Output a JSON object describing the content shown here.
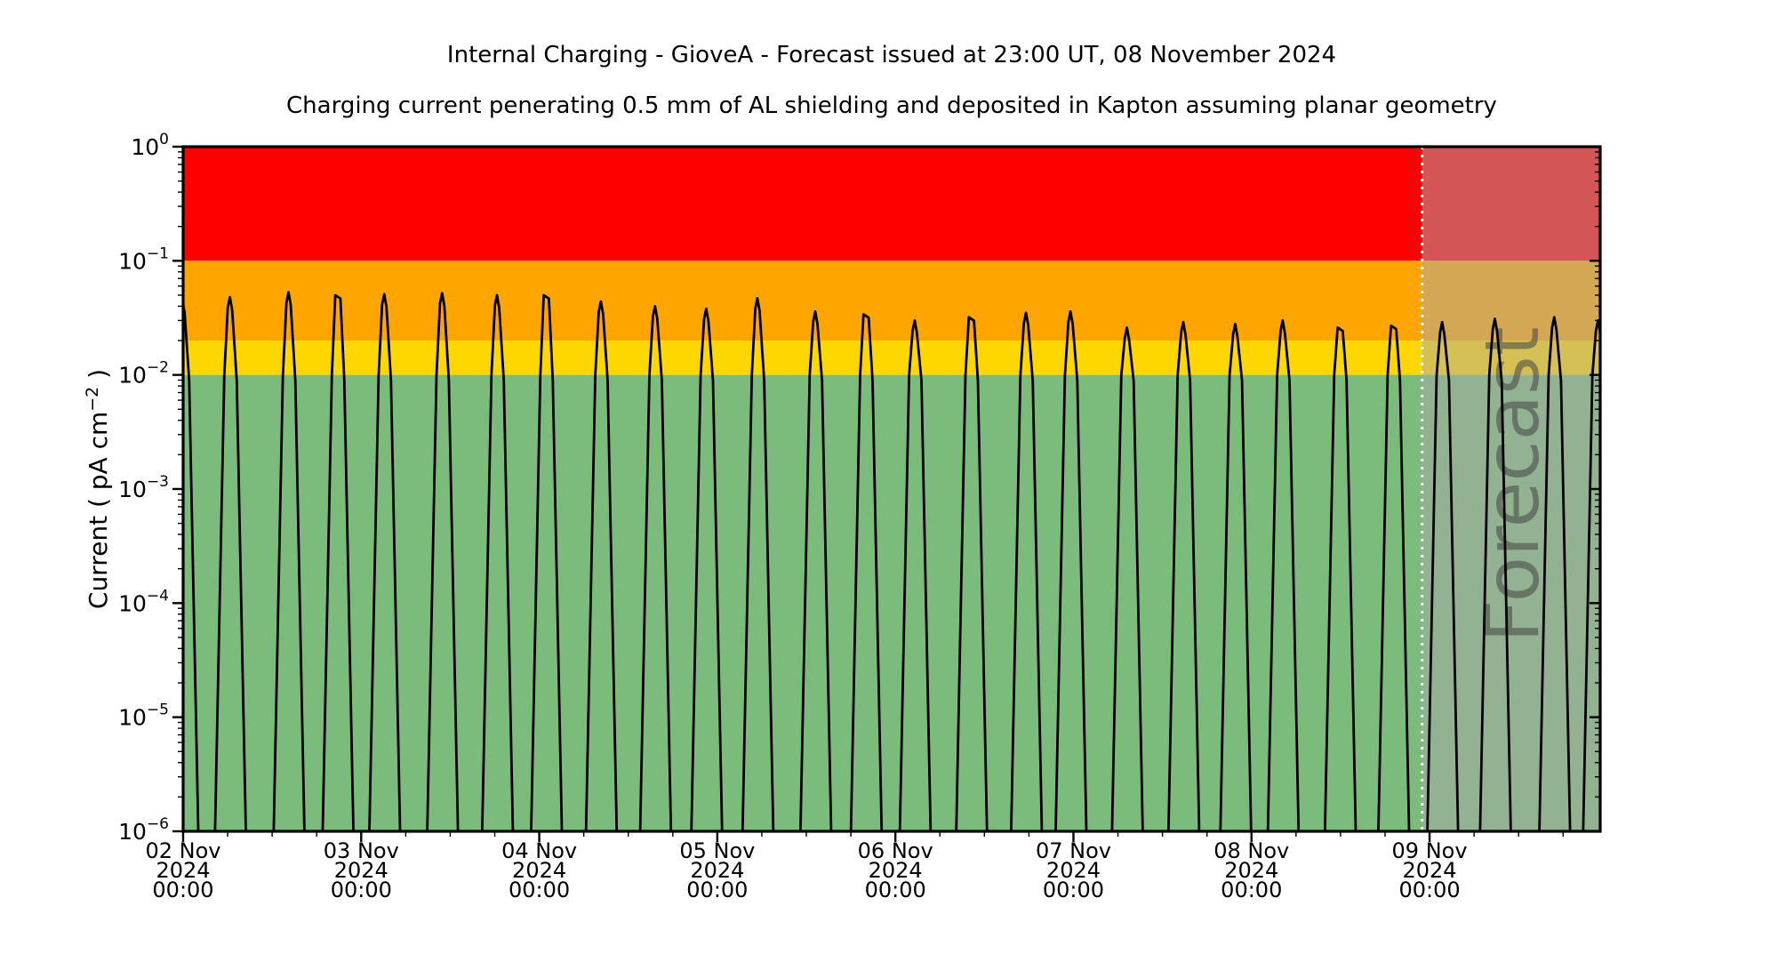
{
  "title": "Internal Charging - GioveA - Forecast issued at 23:00 UT, 08 November 2024",
  "subtitle": "Charging current penerating 0.5 mm of AL shielding and deposited in Kapton assuming planar geometry",
  "y_axis": {
    "label_prefix": "Current ( pA cm",
    "label_superscript": "−2",
    "label_suffix": " )",
    "tick_exponents": [
      "0",
      "−1",
      "−2",
      "−3",
      "−4",
      "−5",
      "−6"
    ]
  },
  "x_axis": {
    "tick_labels": [
      [
        "02 Nov",
        "2024",
        "00:00"
      ],
      [
        "03 Nov",
        "2024",
        "00:00"
      ],
      [
        "04 Nov",
        "2024",
        "00:00"
      ],
      [
        "05 Nov",
        "2024",
        "00:00"
      ],
      [
        "06 Nov",
        "2024",
        "00:00"
      ],
      [
        "07 Nov",
        "2024",
        "00:00"
      ],
      [
        "08 Nov",
        "2024",
        "00:00"
      ],
      [
        "09 Nov",
        "2024",
        "00:00"
      ]
    ]
  },
  "forecast": {
    "label": "Forecast",
    "start_hours": 167,
    "overlay_color": "rgba(170,170,170,0.50)",
    "label_color": "rgba(68,68,68,0.55)",
    "divider_color": "#ffffff"
  },
  "chart_data": {
    "type": "line",
    "title": "Internal Charging - GioveA",
    "x_unit": "hours since 02 Nov 2024 00:00 UT",
    "x_range_hours": [
      0,
      191
    ],
    "y_scale": "log",
    "y_range": [
      1e-06,
      1
    ],
    "ylabel": "Current ( pA cm^-2 )",
    "line_color": "#000000",
    "bands": [
      {
        "name": "red",
        "from": 0.1,
        "to": 1.0,
        "color": "#ff0000"
      },
      {
        "name": "orange",
        "from": 0.02,
        "to": 0.1,
        "color": "#ffa500"
      },
      {
        "name": "yellow",
        "from": 0.01,
        "to": 0.02,
        "color": "#ffd700"
      },
      {
        "name": "green",
        "from": 1e-06,
        "to": 0.01,
        "color": "#7bbb7b"
      }
    ],
    "peaks_format": [
      "time_hours",
      "peak_pA_cm2",
      "flat_top"
    ],
    "peaks": [
      [
        0.0,
        0.045,
        0
      ],
      [
        6.4,
        0.048,
        0
      ],
      [
        14.3,
        0.053,
        0
      ],
      [
        20.9,
        0.05,
        1
      ],
      [
        27.2,
        0.051,
        0
      ],
      [
        35.0,
        0.052,
        0
      ],
      [
        42.4,
        0.05,
        0
      ],
      [
        49.0,
        0.05,
        1
      ],
      [
        56.4,
        0.044,
        0
      ],
      [
        63.7,
        0.04,
        0
      ],
      [
        70.6,
        0.038,
        0
      ],
      [
        77.5,
        0.047,
        0
      ],
      [
        85.3,
        0.036,
        0
      ],
      [
        92.1,
        0.034,
        1
      ],
      [
        98.7,
        0.03,
        0
      ],
      [
        106.3,
        0.032,
        1
      ],
      [
        113.7,
        0.035,
        0
      ],
      [
        119.7,
        0.036,
        0
      ],
      [
        127.3,
        0.026,
        0
      ],
      [
        134.9,
        0.029,
        0
      ],
      [
        141.9,
        0.028,
        0
      ],
      [
        148.3,
        0.03,
        0
      ],
      [
        156.0,
        0.026,
        1
      ],
      [
        163.2,
        0.027,
        1
      ],
      [
        169.8,
        0.029,
        0
      ],
      [
        176.9,
        0.031,
        0
      ],
      [
        184.9,
        0.032,
        0
      ],
      [
        190.8,
        0.03,
        0
      ]
    ]
  }
}
